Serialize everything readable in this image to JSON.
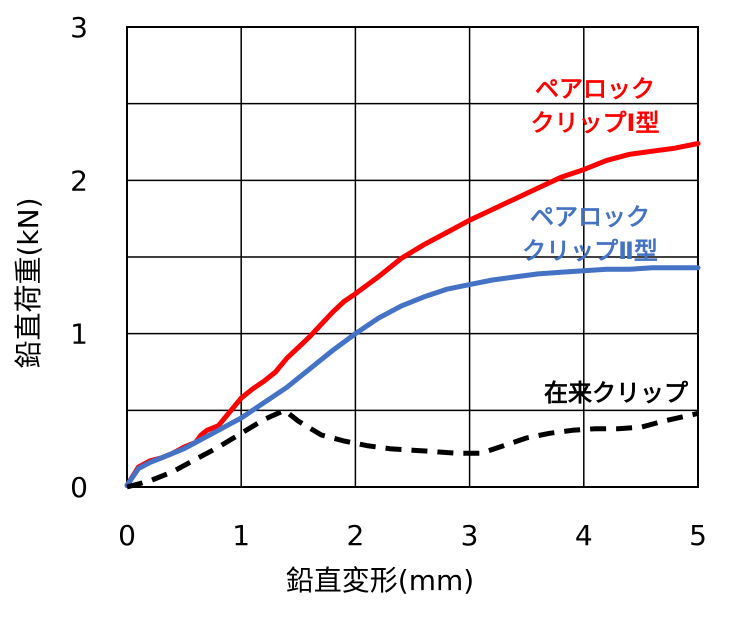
{
  "chart_data": {
    "type": "line",
    "xlabel": "鉛直変形(mm)",
    "ylabel": "鉛直荷重(kN)",
    "xlim": [
      0,
      5
    ],
    "ylim": [
      0,
      3
    ],
    "xticks": [
      "0",
      "1",
      "2",
      "3",
      "4",
      "5"
    ],
    "yticks": [
      "0",
      "1",
      "2",
      "3"
    ],
    "grid": true,
    "series": [
      {
        "name_lines": [
          "ペアロック",
          "クリップⅠ型"
        ],
        "color": "#ff0000",
        "style": "solid",
        "x": [
          0,
          0.1,
          0.2,
          0.3,
          0.4,
          0.5,
          0.6,
          0.65,
          0.7,
          0.8,
          0.9,
          1.0,
          1.1,
          1.2,
          1.3,
          1.4,
          1.5,
          1.6,
          1.7,
          1.8,
          1.9,
          2.0,
          2.2,
          2.4,
          2.6,
          2.8,
          3.0,
          3.2,
          3.4,
          3.6,
          3.8,
          4.0,
          4.2,
          4.4,
          4.6,
          4.8,
          5.0
        ],
        "y": [
          0.01,
          0.13,
          0.17,
          0.19,
          0.22,
          0.26,
          0.29,
          0.34,
          0.37,
          0.4,
          0.49,
          0.58,
          0.64,
          0.69,
          0.75,
          0.84,
          0.91,
          0.98,
          1.06,
          1.14,
          1.21,
          1.26,
          1.37,
          1.49,
          1.58,
          1.66,
          1.74,
          1.81,
          1.88,
          1.95,
          2.02,
          2.07,
          2.13,
          2.17,
          2.19,
          2.21,
          2.24
        ]
      },
      {
        "name_lines": [
          "ペアロック",
          "クリップⅡ型"
        ],
        "color": "#4472c4",
        "style": "solid",
        "x": [
          0,
          0.1,
          0.2,
          0.3,
          0.4,
          0.5,
          0.6,
          0.7,
          0.8,
          0.9,
          1.0,
          1.2,
          1.4,
          1.6,
          1.8,
          2.0,
          2.2,
          2.4,
          2.6,
          2.8,
          3.0,
          3.2,
          3.4,
          3.6,
          3.8,
          4.0,
          4.2,
          4.4,
          4.6,
          4.8,
          5.0
        ],
        "y": [
          0.01,
          0.12,
          0.16,
          0.19,
          0.22,
          0.25,
          0.29,
          0.33,
          0.37,
          0.41,
          0.45,
          0.55,
          0.65,
          0.77,
          0.89,
          1.0,
          1.1,
          1.18,
          1.24,
          1.29,
          1.32,
          1.35,
          1.37,
          1.39,
          1.4,
          1.41,
          1.42,
          1.42,
          1.43,
          1.43,
          1.43
        ]
      },
      {
        "name_lines": [
          "在来クリップ"
        ],
        "color": "#000000",
        "style": "dashed",
        "x": [
          0,
          0.2,
          0.4,
          0.6,
          0.8,
          1.0,
          1.2,
          1.38,
          1.5,
          1.7,
          1.9,
          2.1,
          2.3,
          2.5,
          2.7,
          2.9,
          3.1,
          3.3,
          3.5,
          3.7,
          3.9,
          4.1,
          4.3,
          4.5,
          4.7,
          5.0
        ],
        "y": [
          0.0,
          0.04,
          0.1,
          0.18,
          0.26,
          0.35,
          0.44,
          0.5,
          0.43,
          0.34,
          0.3,
          0.27,
          0.25,
          0.24,
          0.23,
          0.22,
          0.22,
          0.27,
          0.32,
          0.35,
          0.37,
          0.38,
          0.38,
          0.39,
          0.43,
          0.48
        ]
      }
    ]
  }
}
